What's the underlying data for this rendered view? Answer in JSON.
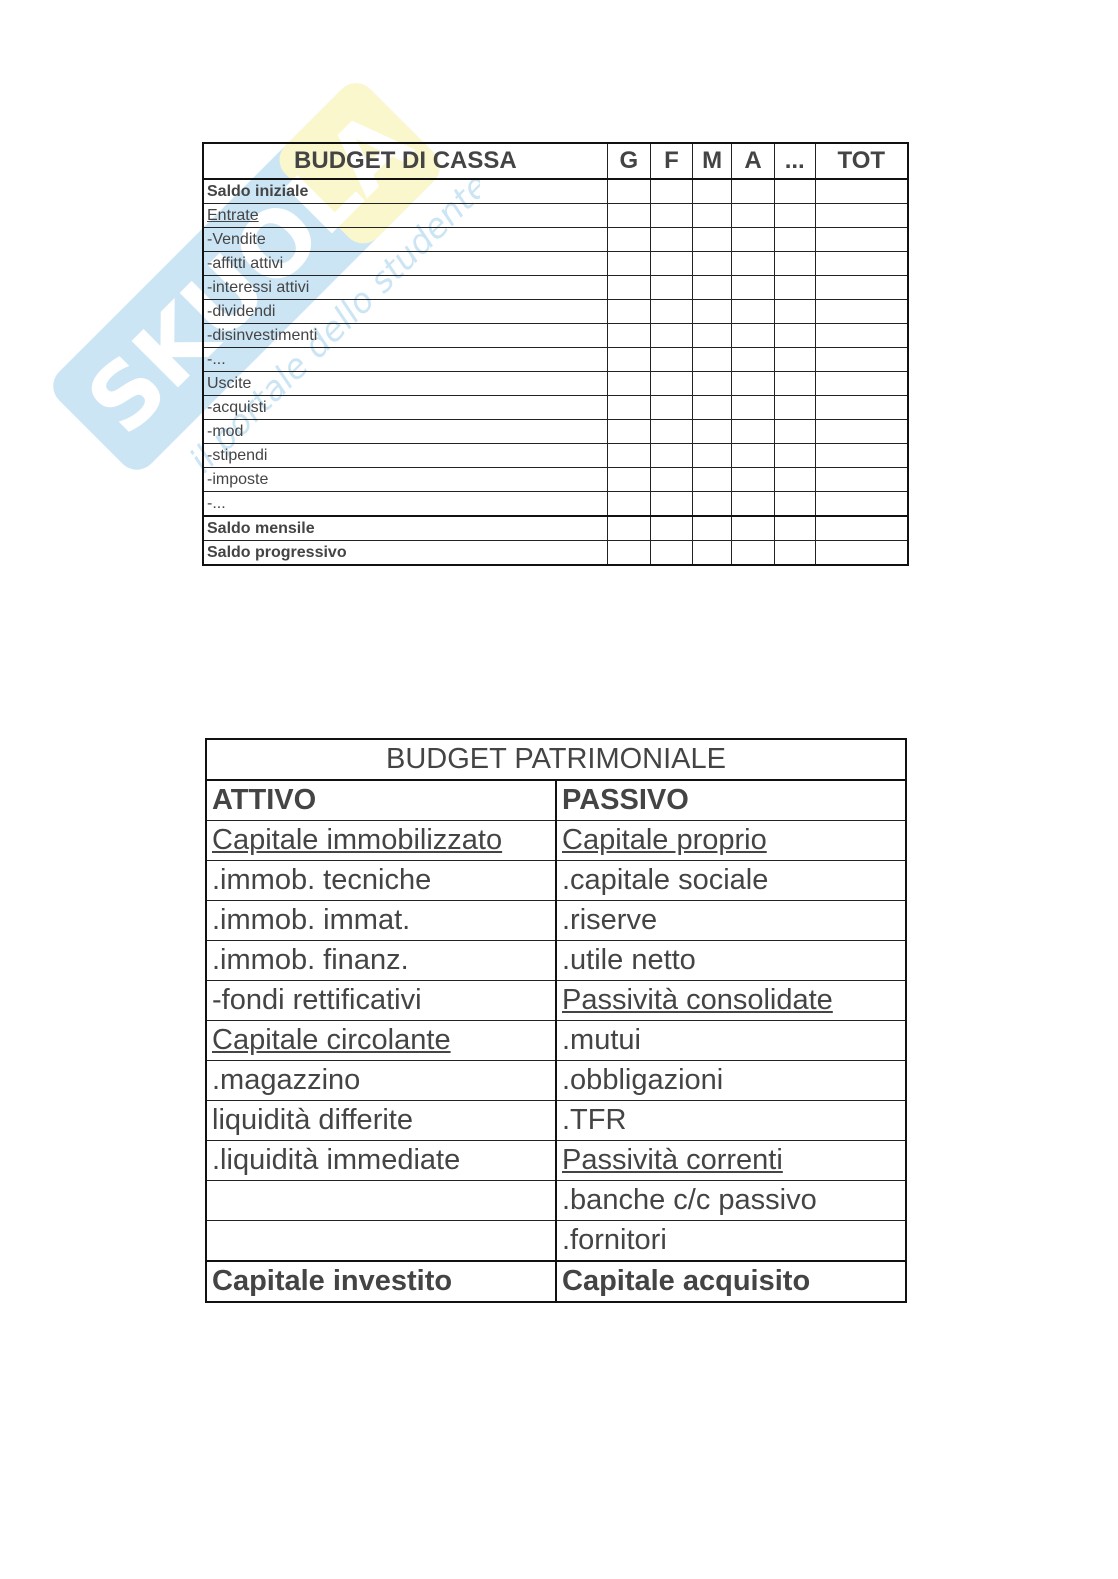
{
  "watermark": {
    "logo_text": "Skuola.net",
    "tagline": "il portale dello studente"
  },
  "budget_cassa": {
    "title": "BUDGET DI CASSA",
    "columns": [
      "G",
      "F",
      "M",
      "A",
      "...",
      "TOT"
    ],
    "rows": [
      {
        "label": "Saldo iniziale",
        "bold": true
      },
      {
        "label": "Entrate",
        "underline": true
      },
      {
        "label": "-Vendite"
      },
      {
        "label": "-affitti attivi"
      },
      {
        "label": "-interessi attivi"
      },
      {
        "label": "-dividendi"
      },
      {
        "label": "-disinvestimenti"
      },
      {
        "label": "-..."
      },
      {
        "label": "Uscite"
      },
      {
        "label": "-acquisti"
      },
      {
        "label": "-mod"
      },
      {
        "label": "-stipendi"
      },
      {
        "label": "-imposte"
      },
      {
        "label": "-..."
      },
      {
        "label": "Saldo mensile",
        "bold": true
      },
      {
        "label": "Saldo progressivo",
        "bold": true
      }
    ]
  },
  "budget_patrimoniale": {
    "title": "BUDGET PATRIMONIALE",
    "attivo_header": "ATTIVO",
    "passivo_header": "PASSIVO",
    "rows": [
      [
        "Capitale immobilizzato",
        "Capitale proprio"
      ],
      [
        ".immob. tecniche",
        ".capitale sociale"
      ],
      [
        ".immob. immat.",
        ".riserve"
      ],
      [
        ".immob. finanz.",
        ".utile netto"
      ],
      [
        "-fondi rettificativi",
        "Passività consolidate"
      ],
      [
        "Capitale circolante",
        ".mutui"
      ],
      [
        ".magazzino",
        ".obbligazioni"
      ],
      [
        "liquidità differite",
        ".TFR"
      ],
      [
        ".liquidità immediate",
        "Passività correnti"
      ],
      [
        "",
        ".banche c/c passivo"
      ],
      [
        "",
        ".fornitori"
      ]
    ],
    "totals": [
      "Capitale investito",
      "Capitale acquisito"
    ]
  }
}
